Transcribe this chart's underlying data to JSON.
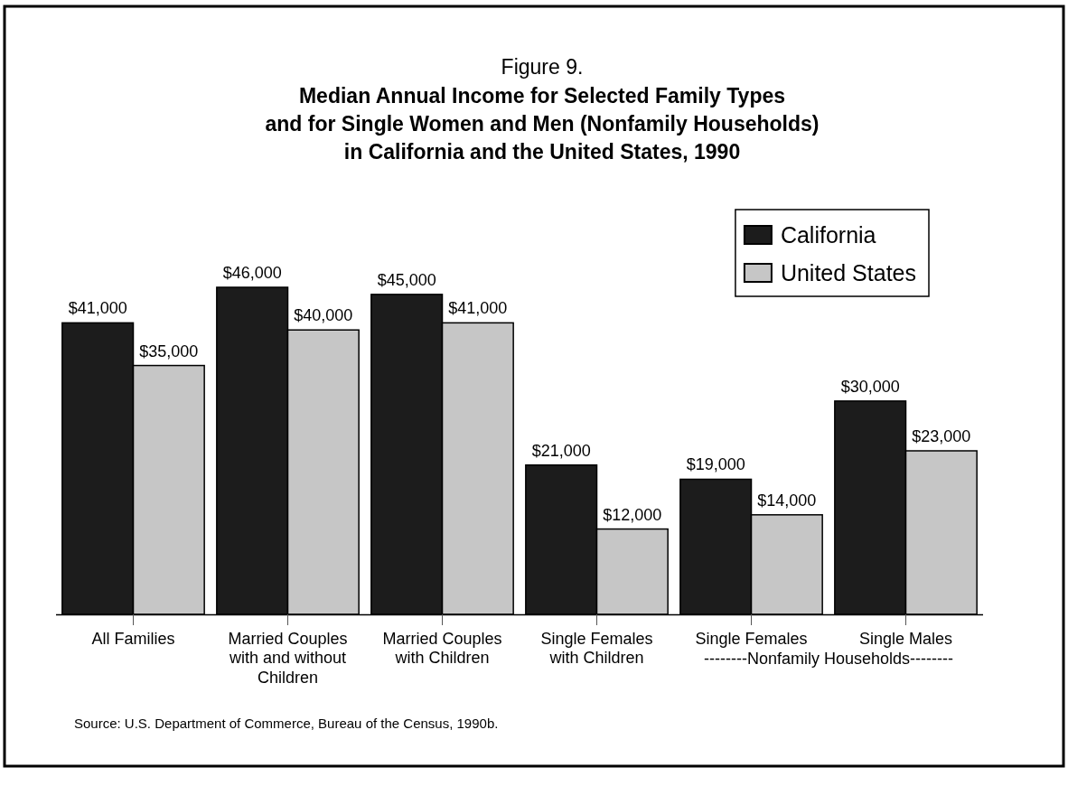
{
  "chart_data": {
    "type": "bar",
    "title": "Figure 9.",
    "subtitle": "Median Annual Income for Selected Family Types\nand for Single Women and Men (Nonfamily Households)\nin California and the United States, 1990",
    "categories": [
      "All Families",
      "Married Couples with and without Children",
      "Married Couples with Children",
      "Single Females with Children",
      "Single Females",
      "Single Males"
    ],
    "series": [
      {
        "name": "California",
        "color": "#1c1c1c",
        "values": [
          41000,
          46000,
          45000,
          21000,
          19000,
          30000
        ],
        "value_labels": [
          "$41,000",
          "$46,000",
          "$45,000",
          "$21,000",
          "$19,000",
          "$30,000"
        ]
      },
      {
        "name": "United States",
        "color": "#c6c6c6",
        "values": [
          35000,
          40000,
          41000,
          12000,
          14000,
          23000
        ],
        "value_labels": [
          "$35,000",
          "$40,000",
          "$41,000",
          "$12,000",
          "$14,000",
          "$23,000"
        ]
      }
    ],
    "annotations": [
      "--------Nonfamily Households--------",
      "Source:  U.S. Department of Commerce, Bureau of the Census, 1990b."
    ],
    "legend": "top right"
  }
}
